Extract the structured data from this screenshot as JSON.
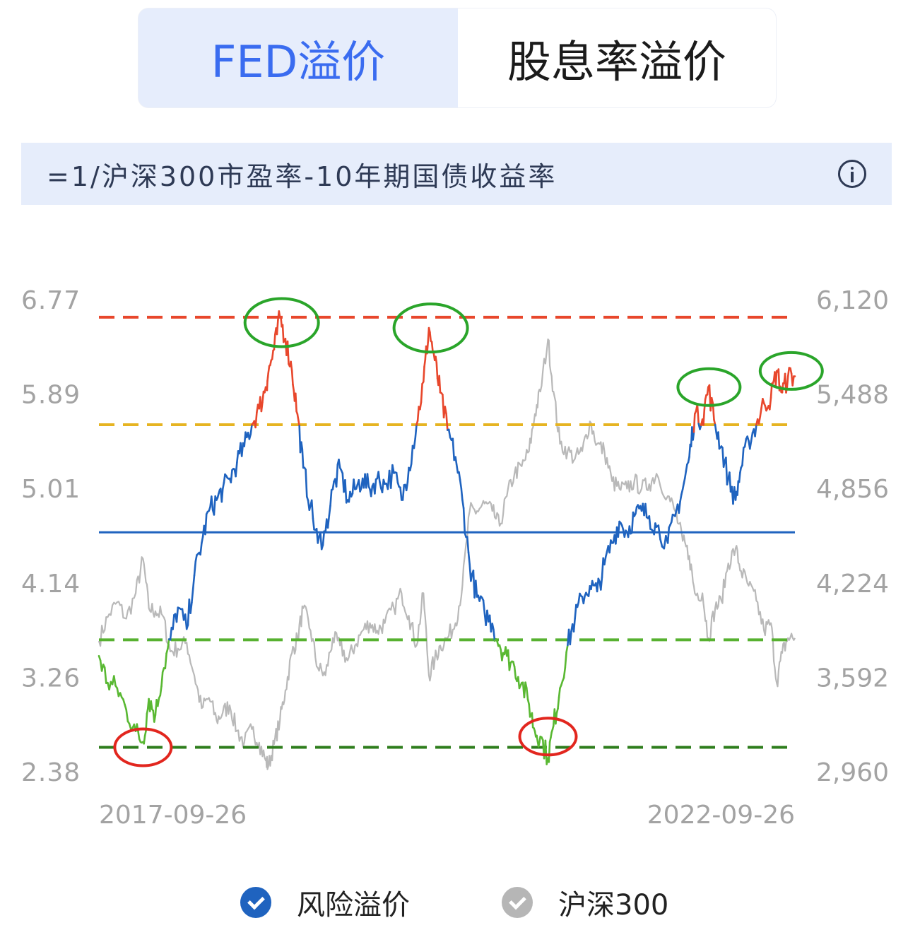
{
  "tabs": [
    {
      "label": "FED溢价",
      "active": true
    },
    {
      "label": "股息率溢价",
      "active": false
    }
  ],
  "formula": "=1/沪深300市盈率-10年期国债收益率",
  "legend": [
    {
      "label": "风险溢价",
      "color": "#1f63bf"
    },
    {
      "label": "沪深300",
      "color": "#b6b6b6"
    }
  ],
  "colors": {
    "premium_blue": "#1f63bf",
    "premium_red": "#e8472c",
    "premium_green": "#59b832",
    "index_gray": "#b9b9b9",
    "mean_line": "#1f63bf",
    "upper_extreme": "#e8472c",
    "upper_band": "#e6b422",
    "lower_band": "#57b130",
    "lower_extreme": "#2e7d1c",
    "annotation_green": "#2aa52a",
    "annotation_red": "#e2261e"
  },
  "chart_data": {
    "type": "line",
    "title": "",
    "x_range": [
      "2017-09-26",
      "2022-12-20"
    ],
    "x_tick_labels": [
      "2017-09-26",
      "2022-09-26"
    ],
    "y_left": {
      "range": [
        2.38,
        6.77
      ],
      "ticks": [
        "6.77",
        "5.89",
        "5.01",
        "4.14",
        "3.26",
        "2.38"
      ]
    },
    "y_right": {
      "range": [
        2960,
        6120
      ],
      "ticks": [
        "6,120",
        "5,488",
        "4,856",
        "4,224",
        "3,592",
        "2,960"
      ]
    },
    "reference_lines": [
      {
        "value": 6.6,
        "color": "#e8472c",
        "style": "dashed"
      },
      {
        "value": 5.6,
        "color": "#e6b422",
        "style": "dashed"
      },
      {
        "value": 4.6,
        "color": "#1f63bf",
        "style": "solid"
      },
      {
        "value": 3.6,
        "color": "#57b130",
        "style": "dashed"
      },
      {
        "value": 2.6,
        "color": "#2e7d1c",
        "style": "dashed"
      }
    ],
    "series": [
      {
        "name": "风险溢价",
        "axis": "left",
        "points": [
          [
            "2017-09-26",
            3.45
          ],
          [
            "2017-10-20",
            3.2
          ],
          [
            "2017-11-15",
            3.15
          ],
          [
            "2017-12-10",
            2.95
          ],
          [
            "2018-01-05",
            2.75
          ],
          [
            "2018-01-25",
            2.65
          ],
          [
            "2018-02-10",
            3.05
          ],
          [
            "2018-02-28",
            2.9
          ],
          [
            "2018-03-20",
            3.3
          ],
          [
            "2018-04-10",
            3.6
          ],
          [
            "2018-05-01",
            3.9
          ],
          [
            "2018-05-25",
            3.7
          ],
          [
            "2018-06-15",
            4.2
          ],
          [
            "2018-07-05",
            4.5
          ],
          [
            "2018-07-25",
            4.8
          ],
          [
            "2018-08-15",
            4.9
          ],
          [
            "2018-09-01",
            5.0
          ],
          [
            "2018-09-20",
            5.1
          ],
          [
            "2018-10-10",
            5.25
          ],
          [
            "2018-10-30",
            5.4
          ],
          [
            "2018-11-20",
            5.6
          ],
          [
            "2018-12-10",
            5.75
          ],
          [
            "2018-12-28",
            5.95
          ],
          [
            "2019-01-04",
            6.08
          ],
          [
            "2019-01-20",
            6.3
          ],
          [
            "2019-02-05",
            6.6
          ],
          [
            "2019-02-20",
            6.4
          ],
          [
            "2019-03-10",
            6.1
          ],
          [
            "2019-03-25",
            5.7
          ],
          [
            "2019-04-10",
            5.2
          ],
          [
            "2019-04-30",
            4.85
          ],
          [
            "2019-05-20",
            4.5
          ],
          [
            "2019-06-10",
            4.6
          ],
          [
            "2019-06-30",
            5.0
          ],
          [
            "2019-07-20",
            5.2
          ],
          [
            "2019-08-10",
            4.9
          ],
          [
            "2019-08-30",
            5.0
          ],
          [
            "2019-09-20",
            5.1
          ],
          [
            "2019-10-10",
            5.0
          ],
          [
            "2019-10-30",
            5.1
          ],
          [
            "2019-11-20",
            5.05
          ],
          [
            "2019-12-15",
            5.15
          ],
          [
            "2020-01-05",
            4.9
          ],
          [
            "2020-01-25",
            5.2
          ],
          [
            "2020-02-15",
            5.6
          ],
          [
            "2020-03-05",
            6.0
          ],
          [
            "2020-03-20",
            6.5
          ],
          [
            "2020-04-05",
            6.2
          ],
          [
            "2020-04-20",
            5.9
          ],
          [
            "2020-05-10",
            5.55
          ],
          [
            "2020-06-01",
            5.3
          ],
          [
            "2020-06-20",
            4.9
          ],
          [
            "2020-07-10",
            4.3
          ],
          [
            "2020-07-30",
            4.0
          ],
          [
            "2020-08-20",
            3.85
          ],
          [
            "2020-09-10",
            3.75
          ],
          [
            "2020-09-30",
            3.55
          ],
          [
            "2020-10-20",
            3.45
          ],
          [
            "2020-11-10",
            3.35
          ],
          [
            "2020-11-30",
            3.2
          ],
          [
            "2020-12-20",
            3.0
          ],
          [
            "2021-01-05",
            2.75
          ],
          [
            "2021-01-20",
            2.7
          ],
          [
            "2021-02-10",
            2.5
          ],
          [
            "2021-02-25",
            2.8
          ],
          [
            "2021-03-15",
            3.15
          ],
          [
            "2021-04-05",
            3.55
          ],
          [
            "2021-04-25",
            3.8
          ],
          [
            "2021-05-15",
            4.0
          ],
          [
            "2021-06-05",
            4.1
          ],
          [
            "2021-06-25",
            4.05
          ],
          [
            "2021-07-15",
            4.3
          ],
          [
            "2021-08-05",
            4.5
          ],
          [
            "2021-08-25",
            4.7
          ],
          [
            "2021-09-15",
            4.6
          ],
          [
            "2021-10-05",
            4.75
          ],
          [
            "2021-10-25",
            4.8
          ],
          [
            "2021-11-15",
            4.75
          ],
          [
            "2021-12-05",
            4.65
          ],
          [
            "2022-01-05",
            4.5
          ],
          [
            "2022-01-25",
            4.75
          ],
          [
            "2022-02-15",
            5.0
          ],
          [
            "2022-03-05",
            5.3
          ],
          [
            "2022-03-20",
            5.7
          ],
          [
            "2022-04-10",
            5.65
          ],
          [
            "2022-04-26",
            5.95
          ],
          [
            "2022-05-15",
            5.6
          ],
          [
            "2022-06-01",
            5.4
          ],
          [
            "2022-06-20",
            5.1
          ],
          [
            "2022-07-10",
            4.9
          ],
          [
            "2022-07-25",
            5.2
          ],
          [
            "2022-08-15",
            5.45
          ],
          [
            "2022-09-05",
            5.6
          ],
          [
            "2022-09-26",
            5.8
          ],
          [
            "2022-10-15",
            5.85
          ],
          [
            "2022-10-31",
            6.1
          ],
          [
            "2022-11-15",
            5.9
          ],
          [
            "2022-12-01",
            6.05
          ],
          [
            "2022-12-20",
            6.05
          ]
        ]
      },
      {
        "name": "沪深300",
        "axis": "right",
        "points": [
          [
            "2017-09-26",
            3830
          ],
          [
            "2017-10-20",
            3990
          ],
          [
            "2017-11-15",
            4090
          ],
          [
            "2017-12-10",
            3980
          ],
          [
            "2018-01-05",
            4150
          ],
          [
            "2018-01-25",
            4380
          ],
          [
            "2018-02-10",
            4050
          ],
          [
            "2018-02-28",
            4030
          ],
          [
            "2018-03-20",
            4000
          ],
          [
            "2018-04-10",
            3760
          ],
          [
            "2018-05-01",
            3780
          ],
          [
            "2018-05-25",
            3820
          ],
          [
            "2018-06-15",
            3600
          ],
          [
            "2018-07-05",
            3380
          ],
          [
            "2018-07-25",
            3450
          ],
          [
            "2018-08-15",
            3300
          ],
          [
            "2018-09-01",
            3350
          ],
          [
            "2018-09-20",
            3400
          ],
          [
            "2018-10-10",
            3230
          ],
          [
            "2018-10-30",
            3150
          ],
          [
            "2018-11-20",
            3240
          ],
          [
            "2018-12-10",
            3150
          ],
          [
            "2018-12-28",
            3030
          ],
          [
            "2019-01-04",
            2990
          ],
          [
            "2019-01-20",
            3140
          ],
          [
            "2019-02-05",
            3300
          ],
          [
            "2019-02-20",
            3500
          ],
          [
            "2019-03-10",
            3750
          ],
          [
            "2019-03-25",
            3850
          ],
          [
            "2019-04-10",
            4050
          ],
          [
            "2019-04-30",
            3900
          ],
          [
            "2019-05-20",
            3650
          ],
          [
            "2019-06-10",
            3600
          ],
          [
            "2019-06-30",
            3850
          ],
          [
            "2019-07-20",
            3800
          ],
          [
            "2019-08-10",
            3700
          ],
          [
            "2019-08-30",
            3800
          ],
          [
            "2019-09-20",
            3900
          ],
          [
            "2019-10-10",
            3950
          ],
          [
            "2019-10-30",
            3900
          ],
          [
            "2019-11-20",
            3950
          ],
          [
            "2019-12-15",
            4050
          ],
          [
            "2020-01-05",
            4150
          ],
          [
            "2020-01-25",
            4000
          ],
          [
            "2020-02-15",
            3800
          ],
          [
            "2020-03-05",
            4150
          ],
          [
            "2020-03-20",
            3600
          ],
          [
            "2020-04-05",
            3700
          ],
          [
            "2020-04-20",
            3800
          ],
          [
            "2020-05-10",
            3850
          ],
          [
            "2020-06-01",
            3950
          ],
          [
            "2020-06-20",
            4200
          ],
          [
            "2020-07-10",
            4700
          ],
          [
            "2020-07-30",
            4700
          ],
          [
            "2020-08-20",
            4750
          ],
          [
            "2020-09-10",
            4700
          ],
          [
            "2020-09-30",
            4600
          ],
          [
            "2020-10-20",
            4800
          ],
          [
            "2020-11-10",
            4950
          ],
          [
            "2020-11-30",
            5000
          ],
          [
            "2020-12-20",
            5100
          ],
          [
            "2021-01-05",
            5350
          ],
          [
            "2021-01-20",
            5500
          ],
          [
            "2021-02-10",
            5850
          ],
          [
            "2021-02-25",
            5500
          ],
          [
            "2021-03-15",
            5150
          ],
          [
            "2021-04-05",
            5100
          ],
          [
            "2021-04-25",
            5050
          ],
          [
            "2021-05-15",
            5100
          ],
          [
            "2021-06-05",
            5300
          ],
          [
            "2021-06-25",
            5150
          ],
          [
            "2021-07-15",
            5100
          ],
          [
            "2021-08-05",
            4900
          ],
          [
            "2021-08-25",
            4850
          ],
          [
            "2021-09-15",
            4850
          ],
          [
            "2021-10-05",
            4900
          ],
          [
            "2021-10-25",
            4850
          ],
          [
            "2021-11-15",
            4880
          ],
          [
            "2021-12-05",
            4950
          ],
          [
            "2022-01-05",
            4800
          ],
          [
            "2022-01-25",
            4700
          ],
          [
            "2022-02-15",
            4500
          ],
          [
            "2022-03-05",
            4400
          ],
          [
            "2022-03-20",
            4150
          ],
          [
            "2022-04-10",
            4150
          ],
          [
            "2022-04-26",
            3850
          ],
          [
            "2022-05-15",
            4050
          ],
          [
            "2022-06-01",
            4100
          ],
          [
            "2022-06-20",
            4350
          ],
          [
            "2022-07-10",
            4450
          ],
          [
            "2022-07-25",
            4300
          ],
          [
            "2022-08-15",
            4200
          ],
          [
            "2022-09-05",
            4100
          ],
          [
            "2022-09-26",
            3900
          ],
          [
            "2022-10-15",
            3950
          ],
          [
            "2022-10-31",
            3550
          ],
          [
            "2022-11-15",
            3750
          ],
          [
            "2022-12-01",
            3850
          ],
          [
            "2022-12-20",
            3850
          ]
        ]
      }
    ],
    "annotations": [
      {
        "type": "ellipse",
        "color": "green",
        "center": [
          "2019-02-10",
          6.55
        ]
      },
      {
        "type": "ellipse",
        "color": "green",
        "center": [
          "2020-03-25",
          6.5
        ]
      },
      {
        "type": "ellipse",
        "color": "green",
        "center": [
          "2022-04-28",
          5.95
        ]
      },
      {
        "type": "ellipse",
        "color": "green",
        "center": [
          "2022-12-10",
          6.1
        ]
      },
      {
        "type": "ellipse",
        "color": "red",
        "center": [
          "2018-01-25",
          2.6
        ]
      },
      {
        "type": "ellipse",
        "color": "red",
        "center": [
          "2021-02-10",
          2.7
        ]
      }
    ],
    "grid": false,
    "legend_position": "bottom"
  }
}
